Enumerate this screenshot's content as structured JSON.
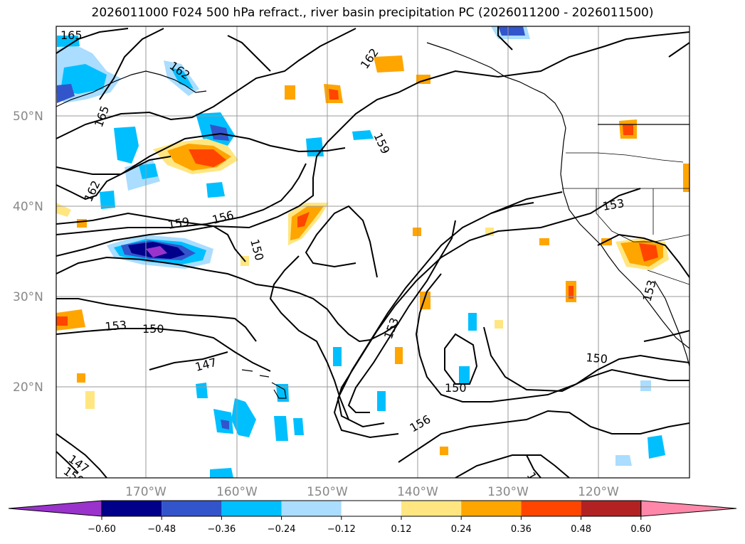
{
  "title": "2026011000 F024 500 hPa refract., river basin precipitation PC (2026011200 - 2026011500)",
  "lat_labels": [
    "50°N",
    "40°N",
    "30°N",
    "20°N"
  ],
  "lon_labels": [
    "170°W",
    "160°W",
    "150°W",
    "140°W",
    "130°W",
    "120°W"
  ],
  "contour_labels": [
    "165",
    "162",
    "165",
    "162",
    "162",
    "159",
    "159",
    "156",
    "150",
    "153",
    "150",
    "147",
    "153",
    "150",
    "156",
    "150",
    "153",
    "153",
    "147",
    "150",
    "15"
  ],
  "colorbar": {
    "ticks": [
      "−0.60",
      "−0.48",
      "−0.36",
      "−0.24",
      "−0.12",
      "0.12",
      "0.24",
      "0.36",
      "0.48",
      "0.60"
    ],
    "colors": [
      "#9933cc",
      "#00008b",
      "#3355cc",
      "#00bfff",
      "#aaddff",
      "#ffffff",
      "#ffe680",
      "#ffa500",
      "#ff4500",
      "#b22222",
      "#ff88aa"
    ]
  }
}
